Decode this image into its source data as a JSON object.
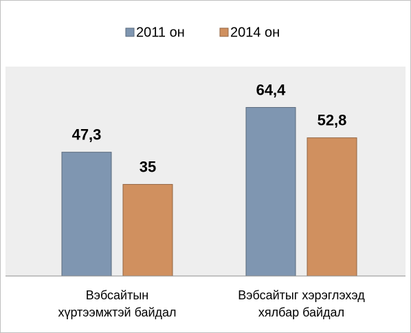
{
  "chart_data": {
    "type": "bar",
    "categories": [
      "Вэбсайтын\nхүртээмжтэй байдал",
      "Вэбсайтыг хэрэглэхэд\nхялбар байдал"
    ],
    "series": [
      {
        "name": "2011 он",
        "color": "#7f96b1",
        "values": [
          47.3,
          64.4
        ],
        "value_labels": [
          "47,3",
          "64,4"
        ]
      },
      {
        "name": "2014 он",
        "color": "#d0905f",
        "values": [
          35,
          52.8
        ],
        "value_labels": [
          "35",
          "52,8"
        ]
      }
    ],
    "ylim": [
      0,
      80
    ],
    "legend": "top"
  }
}
